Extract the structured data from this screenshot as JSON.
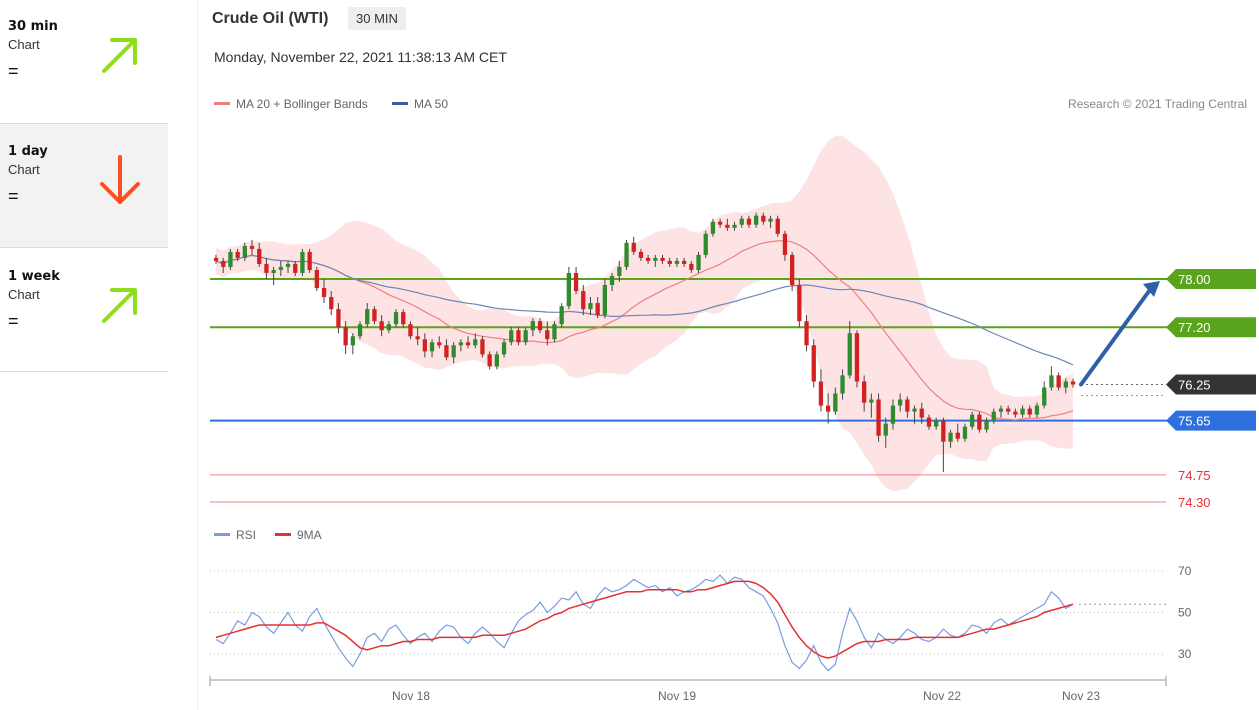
{
  "sidebar": {
    "items": [
      {
        "label": "30 min",
        "sub": "Chart",
        "eq": "=",
        "direction": "up",
        "color": "#8fdd1f"
      },
      {
        "label": "1 day",
        "sub": "Chart",
        "eq": "=",
        "direction": "down",
        "color": "#ff4e1f"
      },
      {
        "label": "1 week",
        "sub": "Chart",
        "eq": "=",
        "direction": "up",
        "color": "#8fdd1f"
      }
    ]
  },
  "header": {
    "title": "Crude Oil (WTI)",
    "timeframe": "30 MIN",
    "datetime": "Monday, November 22, 2021 11:38:13 AM CET",
    "legend": [
      {
        "label": "MA 20 + Bollinger Bands",
        "color": "#f08080"
      },
      {
        "label": "MA 50",
        "color": "#3a5f9a"
      }
    ],
    "credit": "Research © 2021 Trading Central",
    "rsi_legend": [
      {
        "label": "RSI",
        "color": "#7b9be0"
      },
      {
        "label": "9MA",
        "color": "#e53030"
      }
    ]
  },
  "chart_data": {
    "type": "line",
    "title": "Crude Oil (WTI)",
    "xlabel": "",
    "ylabel": "",
    "x_ticks": [
      "Nov 18",
      "Nov 19",
      "Nov 22",
      "Nov 23"
    ],
    "ylim": [
      74.1,
      79.1
    ],
    "levels": [
      {
        "value": 78.0,
        "label": "78.00",
        "kind": "resistance",
        "color": "#5aa31c"
      },
      {
        "value": 77.2,
        "label": "77.20",
        "kind": "resistance",
        "color": "#5aa31c"
      },
      {
        "value": 76.25,
        "label": "76.25",
        "kind": "last-price",
        "color": "#333333"
      },
      {
        "value": 75.65,
        "label": "75.65",
        "kind": "pivot",
        "color": "#2e6fe0"
      },
      {
        "value": 74.75,
        "label": "74.75",
        "kind": "support",
        "color": "#e53030"
      },
      {
        "value": 74.3,
        "label": "74.30",
        "kind": "support",
        "color": "#e53030"
      }
    ],
    "forecast_arrow": {
      "from": 76.25,
      "to": 78.0,
      "color": "#2e5fa8"
    },
    "candles": [
      [
        78.35,
        78.4,
        78.25,
        78.3
      ],
      [
        78.3,
        78.35,
        78.1,
        78.2
      ],
      [
        78.2,
        78.5,
        78.15,
        78.45
      ],
      [
        78.45,
        78.5,
        78.3,
        78.35
      ],
      [
        78.35,
        78.6,
        78.3,
        78.55
      ],
      [
        78.55,
        78.65,
        78.4,
        78.5
      ],
      [
        78.5,
        78.6,
        78.2,
        78.25
      ],
      [
        78.25,
        78.35,
        78.0,
        78.1
      ],
      [
        78.1,
        78.2,
        77.9,
        78.15
      ],
      [
        78.15,
        78.3,
        78.05,
        78.2
      ],
      [
        78.2,
        78.3,
        78.1,
        78.25
      ],
      [
        78.25,
        78.3,
        78.05,
        78.1
      ],
      [
        78.1,
        78.5,
        78.05,
        78.45
      ],
      [
        78.45,
        78.5,
        78.1,
        78.15
      ],
      [
        78.15,
        78.2,
        77.8,
        77.85
      ],
      [
        77.85,
        78.0,
        77.6,
        77.7
      ],
      [
        77.7,
        77.8,
        77.4,
        77.5
      ],
      [
        77.5,
        77.6,
        77.1,
        77.2
      ],
      [
        77.2,
        77.3,
        76.75,
        76.9
      ],
      [
        76.9,
        77.1,
        76.75,
        77.05
      ],
      [
        77.05,
        77.3,
        77.0,
        77.25
      ],
      [
        77.25,
        77.6,
        77.2,
        77.5
      ],
      [
        77.5,
        77.55,
        77.25,
        77.3
      ],
      [
        77.3,
        77.4,
        77.05,
        77.15
      ],
      [
        77.15,
        77.3,
        77.1,
        77.25
      ],
      [
        77.25,
        77.5,
        77.2,
        77.45
      ],
      [
        77.45,
        77.5,
        77.2,
        77.25
      ],
      [
        77.25,
        77.3,
        77.0,
        77.05
      ],
      [
        77.05,
        77.2,
        76.9,
        77.0
      ],
      [
        77.0,
        77.1,
        76.7,
        76.8
      ],
      [
        76.8,
        77.0,
        76.7,
        76.95
      ],
      [
        76.95,
        77.05,
        76.85,
        76.9
      ],
      [
        76.9,
        77.0,
        76.65,
        76.7
      ],
      [
        76.7,
        76.95,
        76.6,
        76.9
      ],
      [
        76.9,
        77.0,
        76.8,
        76.95
      ],
      [
        76.95,
        77.05,
        76.85,
        76.9
      ],
      [
        76.9,
        77.1,
        76.85,
        77.0
      ],
      [
        77.0,
        77.05,
        76.7,
        76.75
      ],
      [
        76.75,
        76.8,
        76.5,
        76.55
      ],
      [
        76.55,
        76.8,
        76.5,
        76.75
      ],
      [
        76.75,
        77.0,
        76.7,
        76.95
      ],
      [
        76.95,
        77.2,
        76.9,
        77.15
      ],
      [
        77.15,
        77.2,
        76.9,
        76.95
      ],
      [
        76.95,
        77.2,
        76.9,
        77.15
      ],
      [
        77.15,
        77.35,
        77.05,
        77.3
      ],
      [
        77.3,
        77.35,
        77.1,
        77.15
      ],
      [
        77.15,
        77.3,
        76.9,
        77.0
      ],
      [
        77.0,
        77.3,
        76.95,
        77.25
      ],
      [
        77.25,
        77.6,
        77.2,
        77.55
      ],
      [
        77.55,
        78.2,
        77.5,
        78.1
      ],
      [
        78.1,
        78.2,
        77.75,
        77.8
      ],
      [
        77.8,
        77.9,
        77.4,
        77.5
      ],
      [
        77.5,
        77.7,
        77.4,
        77.6
      ],
      [
        77.6,
        77.7,
        77.35,
        77.4
      ],
      [
        77.4,
        78.0,
        77.35,
        77.9
      ],
      [
        77.9,
        78.1,
        77.8,
        78.05
      ],
      [
        78.05,
        78.3,
        77.95,
        78.2
      ],
      [
        78.2,
        78.65,
        78.15,
        78.6
      ],
      [
        78.6,
        78.7,
        78.4,
        78.45
      ],
      [
        78.45,
        78.5,
        78.3,
        78.35
      ],
      [
        78.35,
        78.4,
        78.25,
        78.3
      ],
      [
        78.3,
        78.4,
        78.2,
        78.35
      ],
      [
        78.35,
        78.4,
        78.25,
        78.3
      ],
      [
        78.3,
        78.35,
        78.2,
        78.25
      ],
      [
        78.25,
        78.35,
        78.2,
        78.3
      ],
      [
        78.3,
        78.35,
        78.2,
        78.25
      ],
      [
        78.25,
        78.3,
        78.1,
        78.15
      ],
      [
        78.15,
        78.45,
        78.1,
        78.4
      ],
      [
        78.4,
        78.8,
        78.35,
        78.75
      ],
      [
        78.75,
        79.0,
        78.7,
        78.95
      ],
      [
        78.95,
        79.0,
        78.85,
        78.9
      ],
      [
        78.9,
        79.0,
        78.8,
        78.85
      ],
      [
        78.85,
        78.95,
        78.8,
        78.9
      ],
      [
        78.9,
        79.05,
        78.85,
        79.0
      ],
      [
        79.0,
        79.05,
        78.85,
        78.9
      ],
      [
        78.9,
        79.1,
        78.85,
        79.05
      ],
      [
        79.05,
        79.1,
        78.9,
        78.95
      ],
      [
        78.95,
        79.05,
        78.85,
        79.0
      ],
      [
        79.0,
        79.05,
        78.7,
        78.75
      ],
      [
        78.75,
        78.8,
        78.3,
        78.4
      ],
      [
        78.4,
        78.45,
        77.8,
        77.9
      ],
      [
        77.9,
        78.0,
        77.2,
        77.3
      ],
      [
        77.3,
        77.4,
        76.8,
        76.9
      ],
      [
        76.9,
        77.0,
        76.2,
        76.3
      ],
      [
        76.3,
        76.5,
        75.8,
        75.9
      ],
      [
        75.9,
        76.1,
        75.6,
        75.8
      ],
      [
        75.8,
        76.2,
        75.75,
        76.1
      ],
      [
        76.1,
        76.5,
        76.0,
        76.4
      ],
      [
        76.4,
        77.3,
        76.35,
        77.1
      ],
      [
        77.1,
        77.15,
        76.2,
        76.3
      ],
      [
        76.3,
        76.4,
        75.8,
        75.95
      ],
      [
        75.95,
        76.1,
        75.7,
        76.0
      ],
      [
        76.0,
        76.1,
        75.3,
        75.4
      ],
      [
        75.4,
        75.7,
        75.2,
        75.6
      ],
      [
        75.6,
        76.0,
        75.5,
        75.9
      ],
      [
        75.9,
        76.1,
        75.8,
        76.0
      ],
      [
        76.0,
        76.05,
        75.7,
        75.8
      ],
      [
        75.8,
        75.9,
        75.6,
        75.85
      ],
      [
        75.85,
        75.95,
        75.6,
        75.7
      ],
      [
        75.7,
        75.75,
        75.5,
        75.55
      ],
      [
        75.55,
        75.7,
        75.5,
        75.65
      ],
      [
        75.65,
        75.7,
        74.8,
        75.3
      ],
      [
        75.3,
        75.5,
        75.2,
        75.45
      ],
      [
        75.45,
        75.6,
        75.3,
        75.35
      ],
      [
        75.35,
        75.6,
        75.3,
        75.55
      ],
      [
        75.55,
        75.8,
        75.5,
        75.75
      ],
      [
        75.75,
        75.8,
        75.45,
        75.5
      ],
      [
        75.5,
        75.7,
        75.45,
        75.65
      ],
      [
        75.65,
        75.85,
        75.6,
        75.8
      ],
      [
        75.8,
        75.9,
        75.7,
        75.85
      ],
      [
        75.85,
        75.9,
        75.75,
        75.8
      ],
      [
        75.8,
        75.85,
        75.7,
        75.75
      ],
      [
        75.75,
        75.9,
        75.7,
        75.85
      ],
      [
        75.85,
        75.9,
        75.7,
        75.75
      ],
      [
        75.75,
        75.95,
        75.7,
        75.9
      ],
      [
        75.9,
        76.3,
        75.85,
        76.2
      ],
      [
        76.2,
        76.55,
        76.15,
        76.4
      ],
      [
        76.4,
        76.45,
        76.15,
        76.2
      ],
      [
        76.2,
        76.35,
        76.1,
        76.3
      ],
      [
        76.3,
        76.35,
        76.2,
        76.25
      ]
    ],
    "rsi": {
      "ylim": [
        20,
        78
      ],
      "ticks": [
        30,
        50,
        70
      ],
      "series": [
        {
          "name": "RSI",
          "values": [
            37,
            35,
            40,
            46,
            44,
            50,
            48,
            43,
            40,
            45,
            50,
            44,
            41,
            48,
            52,
            45,
            39,
            33,
            28,
            24,
            30,
            38,
            40,
            36,
            42,
            44,
            39,
            35,
            38,
            40,
            36,
            41,
            44,
            43,
            38,
            35,
            40,
            43,
            40,
            36,
            33,
            40,
            46,
            49,
            51,
            55,
            50,
            53,
            57,
            56,
            60,
            54,
            52,
            58,
            62,
            60,
            61,
            63,
            66,
            64,
            62,
            63,
            60,
            62,
            58,
            60,
            61,
            63,
            66,
            65,
            68,
            64,
            67,
            66,
            62,
            60,
            58,
            52,
            45,
            34,
            26,
            23,
            27,
            34,
            26,
            22,
            25,
            40,
            52,
            46,
            38,
            33,
            40,
            37,
            35,
            38,
            42,
            40,
            37,
            36,
            38,
            42,
            39,
            38,
            40,
            44,
            43,
            40,
            45,
            47,
            44,
            46,
            48,
            50,
            52,
            54,
            60,
            57,
            52,
            54
          ]
        },
        {
          "name": "9MA",
          "values": [
            38,
            39,
            40,
            41,
            42,
            43,
            44,
            44,
            44,
            44,
            44,
            44,
            44,
            44,
            45,
            45,
            43,
            41,
            39,
            36,
            33,
            32,
            33,
            34,
            34,
            35,
            36,
            36,
            37,
            37,
            37,
            38,
            38,
            38,
            38,
            38,
            38,
            39,
            39,
            39,
            39,
            40,
            41,
            42,
            44,
            46,
            47,
            49,
            50,
            52,
            53,
            54,
            55,
            56,
            57,
            58,
            59,
            60,
            60,
            60,
            61,
            61,
            61,
            61,
            61,
            60,
            60,
            61,
            61,
            62,
            63,
            64,
            65,
            65,
            65,
            64,
            62,
            59,
            55,
            49,
            43,
            38,
            34,
            31,
            29,
            28,
            29,
            31,
            33,
            35,
            36,
            36,
            36,
            37,
            37,
            37,
            37,
            38,
            38,
            38,
            38,
            38,
            38,
            38,
            39,
            40,
            41,
            42,
            42,
            43,
            44,
            45,
            46,
            47,
            48,
            50,
            51,
            52,
            53,
            54
          ]
        }
      ]
    },
    "rsi_last": 54
  }
}
